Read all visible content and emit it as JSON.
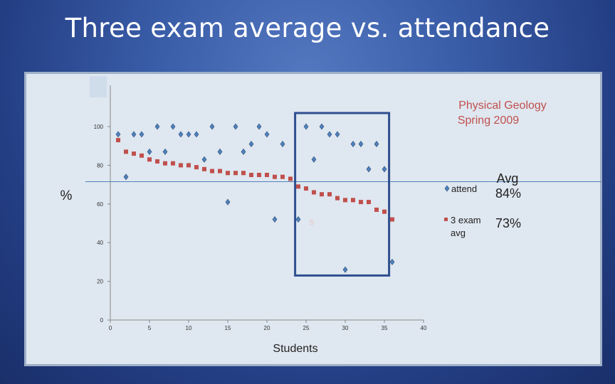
{
  "slide": {
    "title": "Three exam average vs. attendance"
  },
  "annotations": {
    "course": "Physical Geology Spring 2009",
    "course_line1": "Physical Geology",
    "course_line2": "Spring 2009",
    "percent_symbol": "%",
    "avg_label_line1": "Avg",
    "avg_attend_value": "84%",
    "avg_exam_value": "73%",
    "stray_label": "s"
  },
  "colors": {
    "attend_series": "#4f81bd",
    "exam_series": "#c0504d",
    "highlight_box": "#2f4f8f",
    "avg_line": "#4f81bd"
  },
  "chart_data": {
    "type": "scatter",
    "title": "Three exam average vs. attendance",
    "xlabel": "Students",
    "ylabel": "%",
    "xlim": [
      0,
      40
    ],
    "ylim": [
      0,
      100
    ],
    "x_ticks": [
      0,
      5,
      10,
      15,
      20,
      25,
      30,
      35,
      40
    ],
    "y_ticks": [
      0,
      20,
      40,
      60,
      80,
      100
    ],
    "grid": false,
    "legend_position": "right",
    "series": [
      {
        "name": "attend",
        "marker": "diamond",
        "points": [
          [
            1,
            96
          ],
          [
            2,
            74
          ],
          [
            3,
            96
          ],
          [
            4,
            96
          ],
          [
            5,
            87
          ],
          [
            6,
            100
          ],
          [
            7,
            87
          ],
          [
            8,
            100
          ],
          [
            9,
            96
          ],
          [
            10,
            96
          ],
          [
            11,
            96
          ],
          [
            12,
            83
          ],
          [
            13,
            100
          ],
          [
            14,
            87
          ],
          [
            15,
            61
          ],
          [
            16,
            100
          ],
          [
            17,
            87
          ],
          [
            18,
            91
          ],
          [
            19,
            100
          ],
          [
            20,
            96
          ],
          [
            21,
            52
          ],
          [
            22,
            91
          ],
          [
            24,
            52
          ],
          [
            25,
            100
          ],
          [
            26,
            83
          ],
          [
            27,
            100
          ],
          [
            28,
            96
          ],
          [
            29,
            96
          ],
          [
            30,
            26
          ],
          [
            31,
            91
          ],
          [
            32,
            91
          ],
          [
            33,
            78
          ],
          [
            34,
            91
          ],
          [
            35,
            78
          ],
          [
            36,
            30
          ]
        ]
      },
      {
        "name": "3 exam avg",
        "marker": "square",
        "points": [
          [
            1,
            93
          ],
          [
            2,
            87
          ],
          [
            3,
            86
          ],
          [
            4,
            85
          ],
          [
            5,
            83
          ],
          [
            6,
            82
          ],
          [
            7,
            81
          ],
          [
            8,
            81
          ],
          [
            9,
            80
          ],
          [
            10,
            80
          ],
          [
            11,
            79
          ],
          [
            12,
            78
          ],
          [
            13,
            77
          ],
          [
            14,
            77
          ],
          [
            15,
            76
          ],
          [
            16,
            76
          ],
          [
            17,
            76
          ],
          [
            18,
            75
          ],
          [
            19,
            75
          ],
          [
            20,
            75
          ],
          [
            21,
            74
          ],
          [
            22,
            74
          ],
          [
            23,
            73
          ],
          [
            24,
            69
          ],
          [
            25,
            68
          ],
          [
            26,
            66
          ],
          [
            27,
            65
          ],
          [
            28,
            65
          ],
          [
            29,
            63
          ],
          [
            30,
            62
          ],
          [
            31,
            62
          ],
          [
            32,
            61
          ],
          [
            33,
            61
          ],
          [
            34,
            57
          ],
          [
            35,
            56
          ],
          [
            36,
            52
          ]
        ]
      }
    ],
    "reference_line": {
      "y": 71.5
    },
    "highlight_region": {
      "x": [
        23.6,
        35.6
      ],
      "y": [
        23,
        107
      ]
    }
  }
}
